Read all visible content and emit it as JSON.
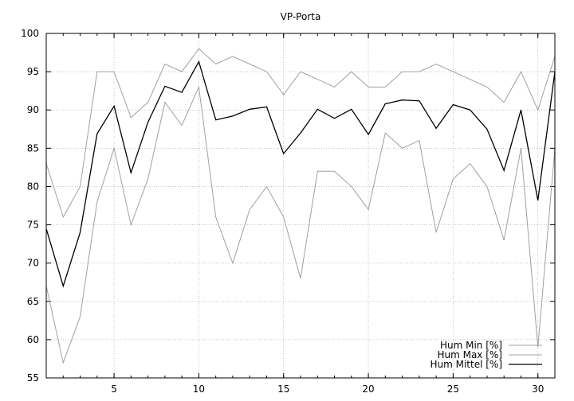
{
  "chart_data": {
    "type": "line",
    "title": "VP-Porta",
    "xlabel": "",
    "ylabel": "",
    "xlim": [
      1,
      31
    ],
    "ylim": [
      55,
      100
    ],
    "x_ticks": [
      5,
      10,
      15,
      20,
      25,
      30
    ],
    "y_ticks": [
      55,
      60,
      65,
      70,
      75,
      80,
      85,
      90,
      95,
      100
    ],
    "grid": true,
    "legend_position": "bottom-right",
    "x": [
      1,
      2,
      3,
      4,
      5,
      6,
      7,
      8,
      9,
      10,
      11,
      12,
      13,
      14,
      15,
      16,
      17,
      18,
      19,
      20,
      21,
      22,
      23,
      24,
      25,
      26,
      27,
      28,
      29,
      30,
      31
    ],
    "series": [
      {
        "name": "Hum Min [%]",
        "color": "#a0a0a0",
        "values": [
          67,
          57,
          63,
          78,
          85,
          75,
          81,
          91,
          88,
          93,
          76,
          70,
          77,
          80,
          76,
          68,
          82,
          82,
          80,
          77,
          87,
          85,
          86,
          74,
          81,
          83,
          80,
          73,
          85,
          59,
          85
        ]
      },
      {
        "name": "Hum Max [%]",
        "color": "#a0a0a0",
        "values": [
          83,
          76,
          80,
          95,
          95,
          89,
          91,
          96,
          95,
          98,
          96,
          97,
          96,
          95,
          92,
          95,
          94,
          93,
          95,
          93,
          93,
          95,
          95,
          96,
          95,
          94,
          93,
          91,
          95,
          90,
          97
        ]
      },
      {
        "name": "Hum Mittel [%]",
        "color": "#000000",
        "values": [
          74.5,
          67,
          74,
          86.9,
          90.5,
          81.8,
          88.4,
          93.1,
          92.3,
          96.3,
          88.7,
          89.2,
          90.1,
          90.4,
          84.3,
          87,
          90.1,
          88.9,
          90.1,
          86.8,
          90.8,
          91.3,
          91.2,
          87.6,
          90.7,
          90,
          87.5,
          82.1,
          90,
          78.2,
          95
        ]
      }
    ]
  }
}
